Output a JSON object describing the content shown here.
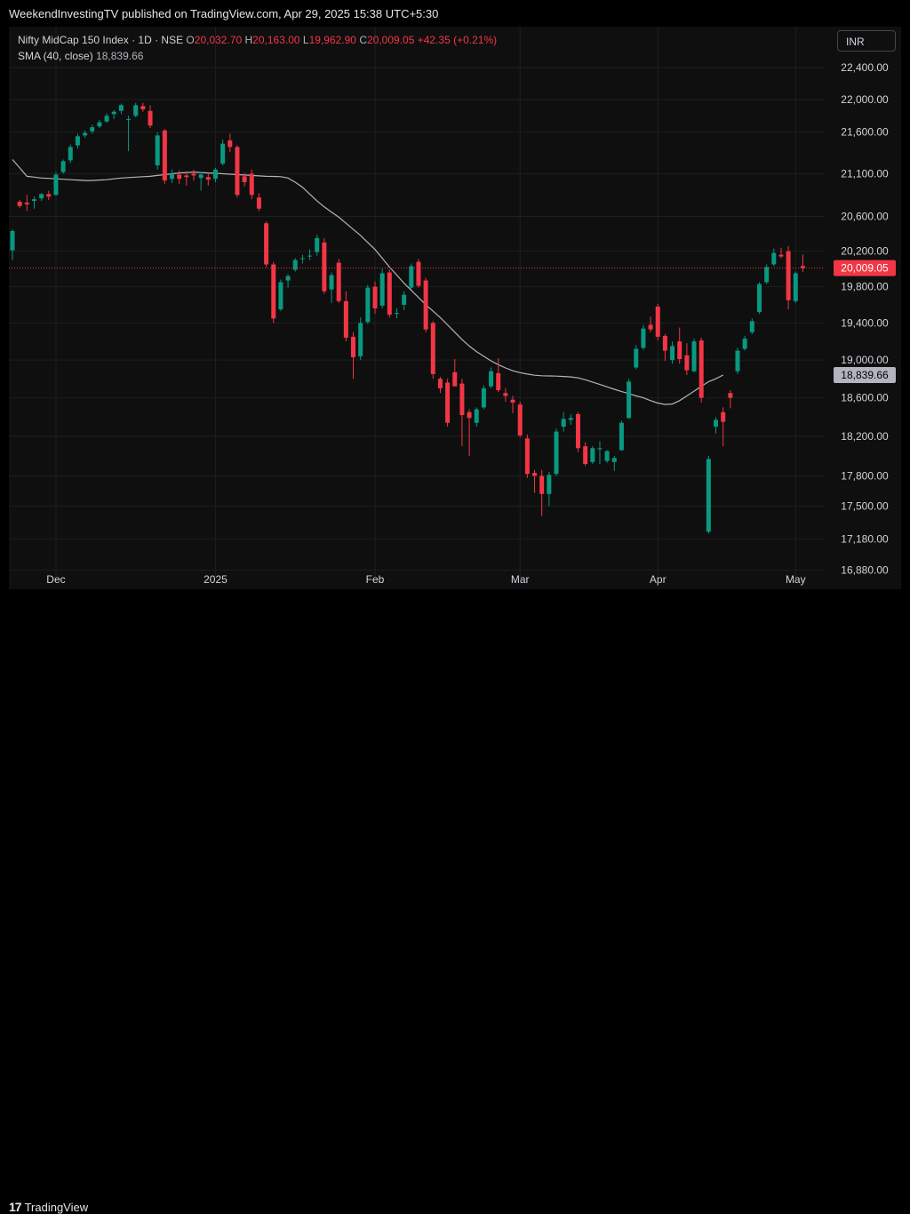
{
  "header": {
    "published": "WeekendInvestingTV published on TradingView.com, Apr 29, 2025 15:38 UTC+5:30"
  },
  "legend": {
    "symbol": "Nifty MidCap 150 Index · 1D · NSE",
    "o_label": "O",
    "o_value": "20,032.70",
    "h_label": "H",
    "h_value": "20,163.00",
    "l_label": "L",
    "l_value": "19,962.90",
    "c_label": "C",
    "c_value": "20,009.05",
    "change": "+42.35 (+0.21%)",
    "sma_label": "SMA (40, close)",
    "sma_value": "18,839.66"
  },
  "currency": "INR",
  "footer": {
    "brand": "TradingView",
    "mark": "17"
  },
  "colors": {
    "up": "#089981",
    "down": "#f23645",
    "sma": "#b2b5be",
    "background": "#0f0f0f",
    "grid": "#1f1f1f"
  },
  "chart_data": {
    "type": "candlestick",
    "y_scale": "log",
    "ylim": [
      16700,
      22750
    ],
    "y_ticks": [
      22400,
      22000,
      21600,
      21100,
      20600,
      20200,
      19800,
      19400,
      19000,
      18600,
      18200,
      17800,
      17500,
      17180,
      16880
    ],
    "y_tick_labels": [
      "22,400.00",
      "22,000.00",
      "21,600.00",
      "21,100.00",
      "20,600.00",
      "20,200.00",
      "19,800.00",
      "19,400.00",
      "19,000.00",
      "18,600.00",
      "18,200.00",
      "17,800.00",
      "17,500.00",
      "17,180.00",
      "16,880.00"
    ],
    "x_ticks": [
      {
        "label": "Dec",
        "index": 6
      },
      {
        "label": "2025",
        "index": 28
      },
      {
        "label": "Feb",
        "index": 50
      },
      {
        "label": "Mar",
        "index": 70
      },
      {
        "label": "Apr",
        "index": 89
      },
      {
        "label": "May",
        "index": 108
      }
    ],
    "last_price": 20009.05,
    "last_price_label": "20,009.05",
    "sma_last_label": "18,839.66",
    "sma40": [
      21270,
      21170,
      21070,
      21060,
      21050,
      21045,
      21040,
      21035,
      21030,
      21025,
      21020,
      21020,
      21025,
      21030,
      21040,
      21050,
      21055,
      21060,
      21065,
      21070,
      21080,
      21090,
      21100,
      21110,
      21115,
      21120,
      21115,
      21110,
      21105,
      21100,
      21095,
      21090,
      21085,
      21080,
      21075,
      21070,
      21068,
      21065,
      21050,
      21000,
      20940,
      20860,
      20780,
      20710,
      20650,
      20590,
      20520,
      20450,
      20380,
      20300,
      20220,
      20120,
      20020,
      19930,
      19840,
      19760,
      19680,
      19600,
      19530,
      19460,
      19380,
      19300,
      19220,
      19150,
      19090,
      19040,
      18990,
      18950,
      18915,
      18885,
      18865,
      18850,
      18838,
      18832,
      18830,
      18828,
      18825,
      18820,
      18810,
      18790,
      18765,
      18740,
      18715,
      18690,
      18665,
      18645,
      18620,
      18600,
      18570,
      18545,
      18530,
      18535,
      18570,
      18620,
      18670,
      18720,
      18770,
      18800,
      18839.66
    ],
    "candles": [
      {
        "o": 20210,
        "h": 20450,
        "l": 20100,
        "c": 20430
      },
      {
        "o": 20770,
        "h": 20790,
        "l": 20700,
        "c": 20720
      },
      {
        "o": 20760,
        "h": 20850,
        "l": 20660,
        "c": 20740
      },
      {
        "o": 20780,
        "h": 20830,
        "l": 20690,
        "c": 20800
      },
      {
        "o": 20810,
        "h": 20870,
        "l": 20780,
        "c": 20860
      },
      {
        "o": 20860,
        "h": 20900,
        "l": 20790,
        "c": 20830
      },
      {
        "o": 20850,
        "h": 21120,
        "l": 20840,
        "c": 21090
      },
      {
        "o": 21120,
        "h": 21270,
        "l": 21100,
        "c": 21250
      },
      {
        "o": 21260,
        "h": 21450,
        "l": 21230,
        "c": 21420
      },
      {
        "o": 21440,
        "h": 21580,
        "l": 21400,
        "c": 21550
      },
      {
        "o": 21560,
        "h": 21620,
        "l": 21530,
        "c": 21590
      },
      {
        "o": 21610,
        "h": 21690,
        "l": 21580,
        "c": 21660
      },
      {
        "o": 21670,
        "h": 21750,
        "l": 21650,
        "c": 21720
      },
      {
        "o": 21730,
        "h": 21830,
        "l": 21710,
        "c": 21800
      },
      {
        "o": 21820,
        "h": 21870,
        "l": 21760,
        "c": 21850
      },
      {
        "o": 21860,
        "h": 21950,
        "l": 21820,
        "c": 21930
      },
      {
        "o": 21750,
        "h": 21800,
        "l": 21370,
        "c": 21760
      },
      {
        "o": 21800,
        "h": 21960,
        "l": 21780,
        "c": 21930
      },
      {
        "o": 21920,
        "h": 21960,
        "l": 21850,
        "c": 21880
      },
      {
        "o": 21860,
        "h": 21930,
        "l": 21650,
        "c": 21680
      },
      {
        "o": 21200,
        "h": 21600,
        "l": 21150,
        "c": 21560
      },
      {
        "o": 21620,
        "h": 21640,
        "l": 20980,
        "c": 21020
      },
      {
        "o": 21040,
        "h": 21150,
        "l": 20990,
        "c": 21100
      },
      {
        "o": 21090,
        "h": 21140,
        "l": 20980,
        "c": 21040
      },
      {
        "o": 21080,
        "h": 21130,
        "l": 20960,
        "c": 21060
      },
      {
        "o": 21100,
        "h": 21150,
        "l": 21020,
        "c": 21080
      },
      {
        "o": 21050,
        "h": 21120,
        "l": 20900,
        "c": 21090
      },
      {
        "o": 21060,
        "h": 21110,
        "l": 20960,
        "c": 21030
      },
      {
        "o": 21040,
        "h": 21170,
        "l": 21000,
        "c": 21150
      },
      {
        "o": 21220,
        "h": 21510,
        "l": 21200,
        "c": 21460
      },
      {
        "o": 21500,
        "h": 21580,
        "l": 21360,
        "c": 21420
      },
      {
        "o": 21420,
        "h": 21440,
        "l": 20820,
        "c": 20850
      },
      {
        "o": 21070,
        "h": 21110,
        "l": 20950,
        "c": 21000
      },
      {
        "o": 21100,
        "h": 21150,
        "l": 20800,
        "c": 20850
      },
      {
        "o": 20820,
        "h": 20870,
        "l": 20660,
        "c": 20690
      },
      {
        "o": 20520,
        "h": 20540,
        "l": 20020,
        "c": 20050
      },
      {
        "o": 20050,
        "h": 20080,
        "l": 19400,
        "c": 19450
      },
      {
        "o": 19550,
        "h": 19880,
        "l": 19530,
        "c": 19850
      },
      {
        "o": 19870,
        "h": 19940,
        "l": 19790,
        "c": 19920
      },
      {
        "o": 19990,
        "h": 20120,
        "l": 19970,
        "c": 20100
      },
      {
        "o": 20110,
        "h": 20160,
        "l": 20060,
        "c": 20120
      },
      {
        "o": 20140,
        "h": 20220,
        "l": 20100,
        "c": 20150
      },
      {
        "o": 20190,
        "h": 20390,
        "l": 20150,
        "c": 20350
      },
      {
        "o": 20300,
        "h": 20350,
        "l": 19720,
        "c": 19750
      },
      {
        "o": 19770,
        "h": 19960,
        "l": 19620,
        "c": 19930
      },
      {
        "o": 20070,
        "h": 20110,
        "l": 19620,
        "c": 19640
      },
      {
        "o": 19640,
        "h": 19750,
        "l": 19200,
        "c": 19240
      },
      {
        "o": 19250,
        "h": 19300,
        "l": 18800,
        "c": 19030
      },
      {
        "o": 19040,
        "h": 19460,
        "l": 19000,
        "c": 19400
      },
      {
        "o": 19410,
        "h": 19820,
        "l": 19390,
        "c": 19790
      },
      {
        "o": 19800,
        "h": 19860,
        "l": 19500,
        "c": 19560
      },
      {
        "o": 19590,
        "h": 20000,
        "l": 19560,
        "c": 19950
      },
      {
        "o": 19960,
        "h": 19990,
        "l": 19460,
        "c": 19490
      },
      {
        "o": 19500,
        "h": 19560,
        "l": 19450,
        "c": 19510
      },
      {
        "o": 19600,
        "h": 19750,
        "l": 19540,
        "c": 19710
      },
      {
        "o": 19790,
        "h": 20060,
        "l": 19770,
        "c": 20030
      },
      {
        "o": 20080,
        "h": 20110,
        "l": 19790,
        "c": 19810
      },
      {
        "o": 19870,
        "h": 19900,
        "l": 19300,
        "c": 19330
      },
      {
        "o": 19400,
        "h": 19420,
        "l": 18800,
        "c": 18850
      },
      {
        "o": 18800,
        "h": 18820,
        "l": 18650,
        "c": 18700
      },
      {
        "o": 18760,
        "h": 18800,
        "l": 18300,
        "c": 18340
      },
      {
        "o": 18870,
        "h": 19010,
        "l": 18730,
        "c": 18720
      },
      {
        "o": 18750,
        "h": 18800,
        "l": 18100,
        "c": 18420
      },
      {
        "o": 18450,
        "h": 18480,
        "l": 18000,
        "c": 18390
      },
      {
        "o": 18340,
        "h": 18500,
        "l": 18300,
        "c": 18480
      },
      {
        "o": 18500,
        "h": 18730,
        "l": 18480,
        "c": 18700
      },
      {
        "o": 18720,
        "h": 18920,
        "l": 18700,
        "c": 18880
      },
      {
        "o": 18860,
        "h": 19020,
        "l": 18660,
        "c": 18680
      },
      {
        "o": 18650,
        "h": 18700,
        "l": 18560,
        "c": 18620
      },
      {
        "o": 18580,
        "h": 18620,
        "l": 18440,
        "c": 18550
      },
      {
        "o": 18530,
        "h": 18560,
        "l": 18190,
        "c": 18210
      },
      {
        "o": 18180,
        "h": 18220,
        "l": 17780,
        "c": 17820
      },
      {
        "o": 17830,
        "h": 17860,
        "l": 17630,
        "c": 17800
      },
      {
        "o": 17800,
        "h": 17860,
        "l": 17400,
        "c": 17620
      },
      {
        "o": 17620,
        "h": 17840,
        "l": 17500,
        "c": 17810
      },
      {
        "o": 17820,
        "h": 18280,
        "l": 17800,
        "c": 18250
      },
      {
        "o": 18300,
        "h": 18450,
        "l": 18250,
        "c": 18380
      },
      {
        "o": 18370,
        "h": 18430,
        "l": 18320,
        "c": 18390
      },
      {
        "o": 18430,
        "h": 18450,
        "l": 18040,
        "c": 18080
      },
      {
        "o": 18100,
        "h": 18140,
        "l": 17900,
        "c": 17920
      },
      {
        "o": 17940,
        "h": 18100,
        "l": 17920,
        "c": 18080
      },
      {
        "o": 18070,
        "h": 18150,
        "l": 17920,
        "c": 18080
      },
      {
        "o": 17950,
        "h": 18060,
        "l": 17930,
        "c": 18050
      },
      {
        "o": 17940,
        "h": 18000,
        "l": 17850,
        "c": 17980
      },
      {
        "o": 18060,
        "h": 18360,
        "l": 18050,
        "c": 18340
      },
      {
        "o": 18390,
        "h": 18800,
        "l": 18380,
        "c": 18770
      },
      {
        "o": 18920,
        "h": 19160,
        "l": 18900,
        "c": 19120
      },
      {
        "o": 19130,
        "h": 19380,
        "l": 19110,
        "c": 19340
      },
      {
        "o": 19380,
        "h": 19470,
        "l": 19300,
        "c": 19330
      },
      {
        "o": 19580,
        "h": 19610,
        "l": 19210,
        "c": 19250
      },
      {
        "o": 19260,
        "h": 19280,
        "l": 18990,
        "c": 19100
      },
      {
        "o": 19000,
        "h": 19200,
        "l": 18960,
        "c": 19150
      },
      {
        "o": 19200,
        "h": 19350,
        "l": 18960,
        "c": 19010
      },
      {
        "o": 19050,
        "h": 19180,
        "l": 18840,
        "c": 18890
      },
      {
        "o": 18880,
        "h": 19230,
        "l": 18870,
        "c": 19200
      },
      {
        "o": 19210,
        "h": 19240,
        "l": 18550,
        "c": 18600
      },
      {
        "o": 17250,
        "h": 18000,
        "l": 17230,
        "c": 17970
      },
      {
        "o": 18300,
        "h": 18400,
        "l": 18230,
        "c": 18370
      },
      {
        "o": 18450,
        "h": 18500,
        "l": 18100,
        "c": 18350
      },
      {
        "o": 18650,
        "h": 18680,
        "l": 18490,
        "c": 18600
      },
      {
        "o": 18880,
        "h": 19130,
        "l": 18850,
        "c": 19100
      },
      {
        "o": 19120,
        "h": 19260,
        "l": 19100,
        "c": 19230
      },
      {
        "o": 19300,
        "h": 19450,
        "l": 19280,
        "c": 19420
      },
      {
        "o": 19520,
        "h": 19850,
        "l": 19500,
        "c": 19830
      },
      {
        "o": 19850,
        "h": 20050,
        "l": 19830,
        "c": 20020
      },
      {
        "o": 20050,
        "h": 20230,
        "l": 20030,
        "c": 20180
      },
      {
        "o": 20160,
        "h": 20240,
        "l": 20120,
        "c": 20140
      },
      {
        "o": 20200,
        "h": 20260,
        "l": 19550,
        "c": 19650
      },
      {
        "o": 19640,
        "h": 19970,
        "l": 19620,
        "c": 19950
      },
      {
        "o": 20032.7,
        "h": 20163,
        "l": 19962.9,
        "c": 20009.05
      }
    ]
  }
}
